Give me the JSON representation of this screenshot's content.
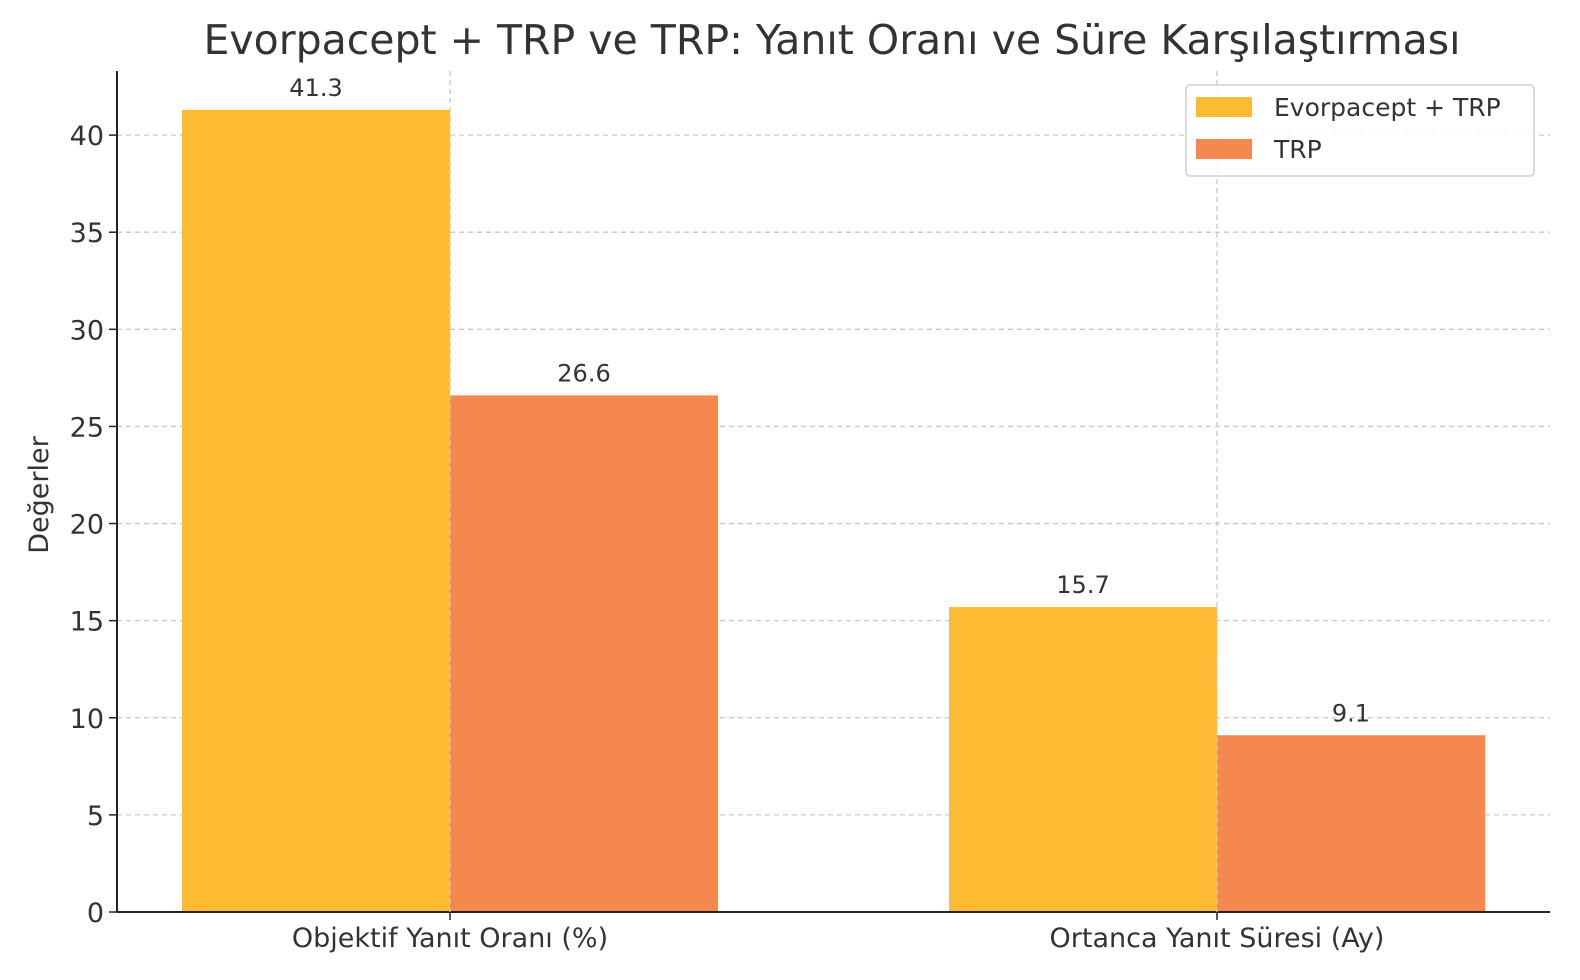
{
  "chart_data": {
    "type": "bar",
    "title": "Evorpacept + TRP ve TRP: Yanıt Oranı ve Süre Karşılaştırması",
    "xlabel": "",
    "ylabel": "Değerler",
    "categories": [
      "Objektif Yanıt Oranı (%)",
      "Ortanca Yanıt Süresi (Ay)"
    ],
    "series": [
      {
        "name": "Evorpacept + TRP",
        "values": [
          41.3,
          15.7
        ],
        "color": "#FDBB33"
      },
      {
        "name": "TRP",
        "values": [
          26.6,
          9.1
        ],
        "color": "#F5884E"
      }
    ],
    "ylim": [
      0,
      43.3
    ],
    "yticks": [
      0,
      5,
      10,
      15,
      20,
      25,
      30,
      35,
      40
    ],
    "grid": true,
    "legend_position": "top-right"
  }
}
